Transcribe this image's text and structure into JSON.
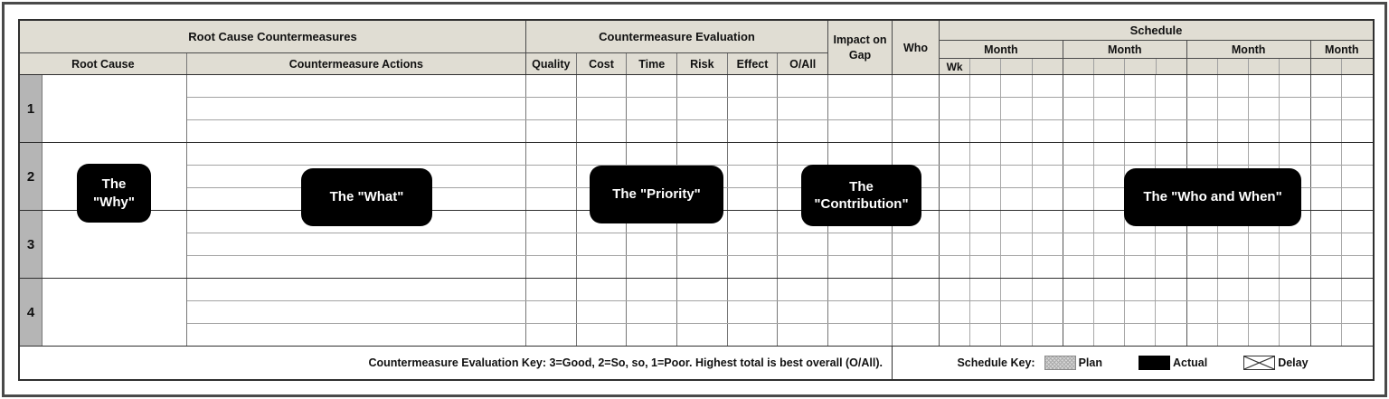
{
  "table": {
    "header": {
      "root_cause_countermeasures": "Root Cause Countermeasures",
      "root_cause": "Root Cause",
      "countermeasure_actions": "Countermeasure Actions",
      "countermeasure_evaluation": "Countermeasure Evaluation",
      "evaluation_columns": [
        "Quality",
        "Cost",
        "Time",
        "Risk",
        "Effect",
        "O/All"
      ],
      "impact_on_gap": "Impact on Gap",
      "who": "Who",
      "schedule": "Schedule",
      "wk": "Wk",
      "months": [
        {
          "label": "Month",
          "span": 4
        },
        {
          "label": "Month",
          "span": 4
        },
        {
          "label": "Month",
          "span": 4
        },
        {
          "label": "Month",
          "span": 2
        }
      ]
    },
    "rows": [
      {
        "number": "1",
        "root_cause": "",
        "subrows": 3
      },
      {
        "number": "2",
        "root_cause": "",
        "subrows": 3
      },
      {
        "number": "3",
        "root_cause": "",
        "subrows": 3
      },
      {
        "number": "4",
        "root_cause": "",
        "subrows": 3
      }
    ],
    "schedule_week_columns": 14,
    "month_boundary_columns": [
      3,
      7,
      11
    ]
  },
  "callouts": [
    {
      "id": "why",
      "text": "The \"Why\""
    },
    {
      "id": "what",
      "text": "The \"What\""
    },
    {
      "id": "priority",
      "text": "The \"Priority\""
    },
    {
      "id": "contribution",
      "text": "The \"Contribution\""
    },
    {
      "id": "who-and-when",
      "text": "The \"Who and When\""
    }
  ],
  "footer": {
    "evaluation_key": "Countermeasure Evaluation Key: 3=Good, 2=So, so, 1=Poor. Highest total is best overall (O/All).",
    "schedule_key_label": "Schedule Key:",
    "legend": [
      {
        "label": "Plan",
        "swatch": "plan"
      },
      {
        "label": "Actual",
        "swatch": "actual"
      },
      {
        "label": "Delay",
        "swatch": "delay"
      }
    ]
  },
  "colors": {
    "header_fill": "#e0ddd3",
    "row_number_fill": "#b5b5b5",
    "callout_bg": "#000000",
    "callout_text": "#ffffff",
    "frame": "#4a4a4a"
  }
}
